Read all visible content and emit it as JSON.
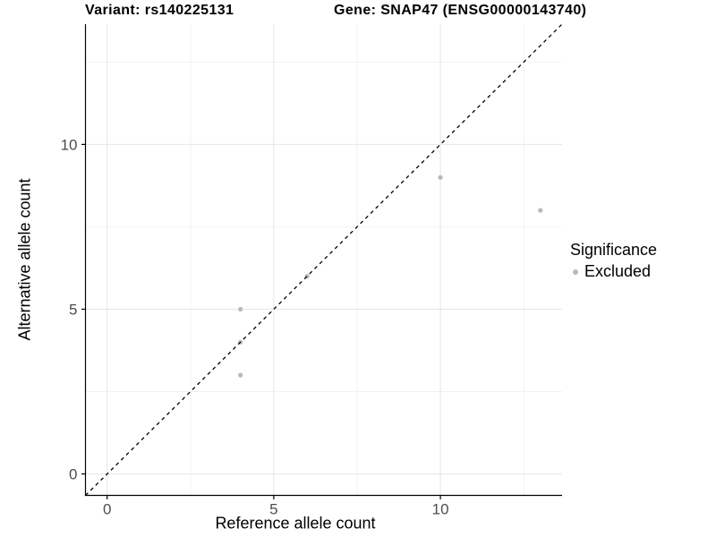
{
  "chart_data": {
    "type": "scatter",
    "title_left": "Variant: rs140225131",
    "title_right": "Gene: SNAP47 (ENSG00000143740)",
    "xlabel": "Reference allele count",
    "ylabel": "Alternative allele count",
    "xlim": [
      -0.65,
      13.65
    ],
    "ylim": [
      -0.65,
      13.65
    ],
    "x_ticks": [
      0,
      5,
      10
    ],
    "y_ticks": [
      0,
      5,
      10
    ],
    "x_minor_ticks": [
      2.5,
      7.5,
      12.5
    ],
    "y_minor_ticks": [
      2.5,
      7.5,
      12.5
    ],
    "grid": "major+minor",
    "identity_line": {
      "equation": "y = x",
      "style": "dashed",
      "color": "#000000"
    },
    "series": [
      {
        "name": "Excluded",
        "color": "#b9b9b9",
        "marker": "circle",
        "points": [
          [
            4,
            3
          ],
          [
            4,
            4
          ],
          [
            4,
            5
          ],
          [
            6,
            6
          ],
          [
            10,
            9
          ],
          [
            13,
            8
          ]
        ]
      }
    ],
    "legend": {
      "title": "Significance",
      "position": "right",
      "items": [
        {
          "label": "Excluded",
          "color": "#b9b9b9"
        }
      ]
    },
    "colors": {
      "grid_major": "#e6e6e6",
      "grid_minor": "#f2f2f2",
      "axis_line": "#000000",
      "tick_label": "#4d4d4d"
    }
  }
}
